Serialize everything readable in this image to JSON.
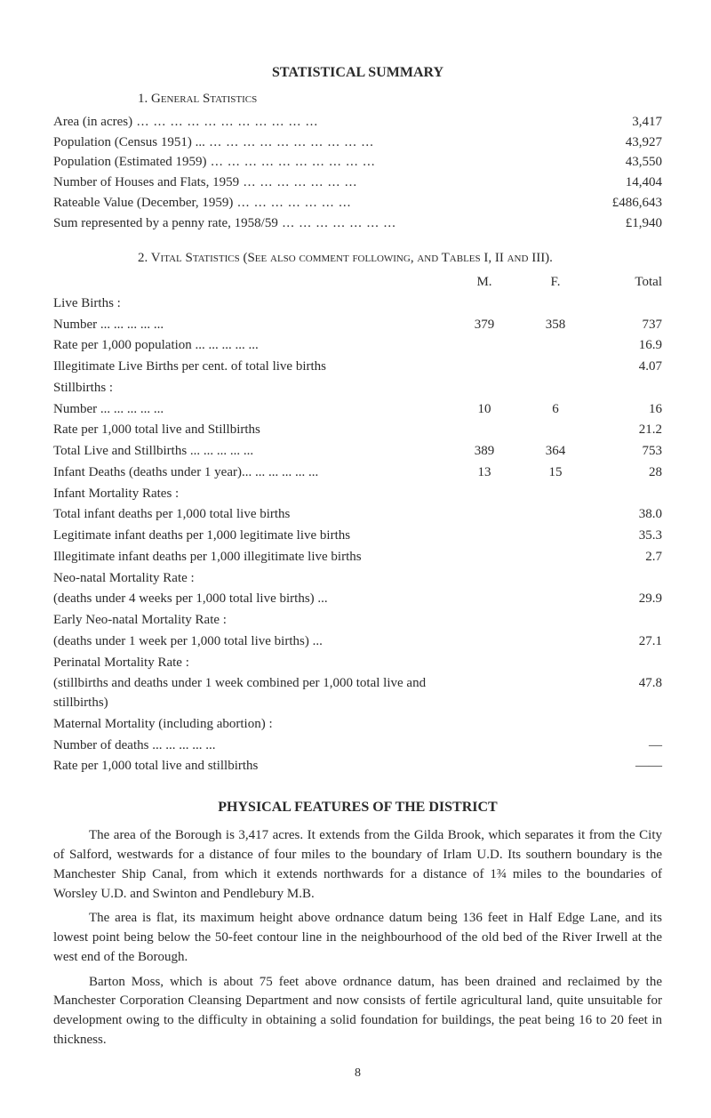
{
  "title": "STATISTICAL SUMMARY",
  "section1_label": "1.  General Statistics",
  "general": [
    {
      "label": "Area (in acres)",
      "value": "3,417"
    },
    {
      "label": "Population (Census 1951) ...",
      "value": "43,927"
    },
    {
      "label": "Population (Estimated 1959)",
      "value": "43,550"
    },
    {
      "label": "Number of Houses and Flats, 1959",
      "value": "14,404"
    },
    {
      "label": "Rateable Value (December, 1959)",
      "value": "£486,643"
    },
    {
      "label": "Sum represented by a penny rate, 1958/59",
      "value": "£1,940"
    }
  ],
  "section2_label": "2.  Vital Statistics   (See also comment following, and Tables I, II and III).",
  "headers": {
    "m": "M.",
    "f": "F.",
    "t": "Total"
  },
  "rows": [
    {
      "label": "Live Births :",
      "indent": 0
    },
    {
      "label": "Number",
      "m": "379",
      "f": "358",
      "t": "737",
      "indent": 1,
      "dots": true
    },
    {
      "label": "Rate per 1,000 population",
      "t": "16.9",
      "indent": 1,
      "dots": true
    },
    {
      "label": "Illegitimate Live Births per cent. of total live births",
      "t": "4.07",
      "indent": 0
    },
    {
      "label": "Stillbirths :",
      "indent": 0
    },
    {
      "label": "Number",
      "m": "10",
      "f": "6",
      "t": "16",
      "indent": 1,
      "dots": true
    },
    {
      "label": "Rate per 1,000 total live and Stillbirths",
      "t": "21.2",
      "indent": 1
    },
    {
      "label": "Total Live and Stillbirths",
      "m": "389",
      "f": "364",
      "t": "753",
      "indent": 0,
      "dots": true
    },
    {
      "label": "Infant Deaths (deaths under 1 year)...",
      "m": "13",
      "f": "15",
      "t": "28",
      "indent": 0,
      "dots": true
    },
    {
      "label": "Infant Mortality Rates :",
      "indent": 0
    },
    {
      "label": "Total infant deaths per 1,000 total live births",
      "t": "38.0",
      "indent": 1
    },
    {
      "label": "Legitimate infant deaths per 1,000 legitimate live births",
      "t": "35.3",
      "indent": 1
    },
    {
      "label": "Illegitimate infant deaths per 1,000 illegitimate live births",
      "t": "2.7",
      "indent": 1
    },
    {
      "label": "Neo-natal Mortality Rate :",
      "indent": 0
    },
    {
      "label": "(deaths under 4 weeks per 1,000 total live births) ...",
      "t": "29.9",
      "indent": 1
    },
    {
      "label": "Early Neo-natal Mortality Rate :",
      "indent": 0
    },
    {
      "label": "(deaths under 1 week per 1,000 total live births)   ...",
      "t": "27.1",
      "indent": 1
    },
    {
      "label": "Perinatal Mortality Rate :",
      "indent": 0
    },
    {
      "label": "(stillbirths and deaths under 1 week combined per 1,000 total live and stillbirths)",
      "t": "47.8",
      "indent": 1
    },
    {
      "label": "Maternal Mortality (including abortion) :",
      "indent": 0
    },
    {
      "label": "Number of deaths",
      "t": "—",
      "indent": 1,
      "dots": true
    },
    {
      "label": "Rate per 1,000 total live and stillbirths",
      "t": "——",
      "indent": 1
    }
  ],
  "subtitle": "PHYSICAL FEATURES OF THE DISTRICT",
  "paragraphs": [
    "The area of the Borough is 3,417 acres. It extends from the Gilda Brook, which separates it from the City of Salford, westwards for a distance of four miles to the boundary of Irlam U.D. Its southern boundary is the Manchester Ship Canal, from which it extends northwards for a distance of 1¾ miles to the boundaries of Worsley U.D. and Swinton and Pendlebury M.B.",
    "The area is flat, its maximum height above ordnance datum being 136 feet in Half Edge Lane, and its lowest point being below the 50-feet contour line in the neighbourhood of the old bed of the River Irwell at the west end of the Borough.",
    "Barton Moss, which is about 75 feet above ordnance datum, has been drained and reclaimed by the Manchester Corporation Cleansing Department and now consists of fertile agricultural land, quite unsuitable for development owing to the difficulty in obtaining a solid foundation for buildings, the peat being 16 to 20 feet in thickness."
  ],
  "pagenum": "8"
}
